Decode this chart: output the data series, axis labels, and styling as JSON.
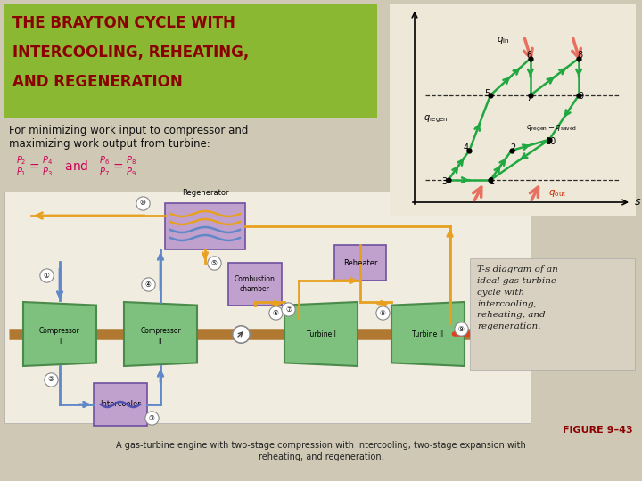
{
  "bg_color": "#cec8b4",
  "title_bg": "#8ab832",
  "title_color": "#8b0000",
  "title_text_line1": "THE BRAYTON CYCLE WITH",
  "title_text_line2": "INTERCOOLING, REHEATING,",
  "title_text_line3": "AND REGENERATION",
  "subtitle_line1": "For minimizing work input to compressor and",
  "subtitle_line2": "maximizing work output from turbine:",
  "comp_color": "#7ec07e",
  "comp_edge": "#4a8a4a",
  "turb_color": "#7ec07e",
  "turb_edge": "#4a8a4a",
  "shaft_color": "#b07830",
  "regen_box_color": "#c0a0cc",
  "regen_box_edge": "#7050a0",
  "comb_box_color": "#c0a0cc",
  "reheater_box_color": "#c0a0cc",
  "intercooler_box_color": "#c0a0cc",
  "blue_flow": "#6088c8",
  "orange_flow": "#e8a020",
  "red_arrow": "#e04020",
  "ts_bg": "#ede8d8",
  "cap_bg": "#d8d0c0",
  "green_ts": "#20a840",
  "salmon_ts": "#e87060",
  "figure_label": "FIGURE 9–43",
  "bottom_text1": "A gas-turbine engine with two-stage compression with intercooling, two-stage expansion with",
  "bottom_text2": "reheating, and regeneration.",
  "ts_caption": "T-s diagram of an\nideal gas-turbine\ncycle with\nintercooling,\nreheating, and\nregeneration."
}
